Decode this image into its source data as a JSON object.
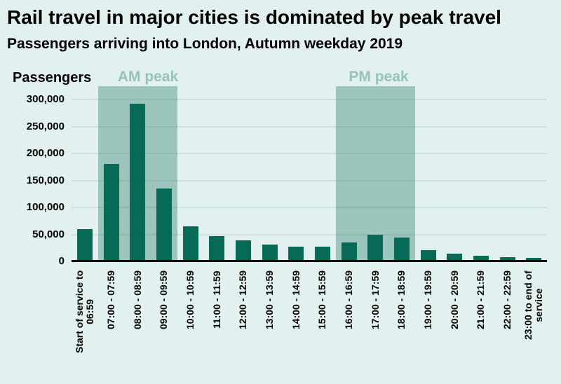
{
  "title": "Rail travel in major cities is dominated by peak travel",
  "subtitle": "Passengers arriving into London, Autumn weekday 2019",
  "chart_data": {
    "type": "bar",
    "title": "Rail travel in major cities is dominated by peak travel",
    "subtitle": "Passengers arriving into London, Autumn weekday 2019",
    "xlabel": "",
    "ylabel": "Passengers",
    "ylim": [
      0,
      300000
    ],
    "grid": true,
    "legend": "none",
    "yticks": [
      {
        "value": 0,
        "label": "0"
      },
      {
        "value": 50000,
        "label": "50,000"
      },
      {
        "value": 100000,
        "label": "100,000"
      },
      {
        "value": 150000,
        "label": "150,000"
      },
      {
        "value": 200000,
        "label": "200,000"
      },
      {
        "value": 250000,
        "label": "250,000"
      },
      {
        "value": 300000,
        "label": "300,000"
      }
    ],
    "categories": [
      "Start of service to 06:59",
      "07:00 - 07:59",
      "08:00 - 08:59",
      "09:00 - 09:59",
      "10:00 - 10:59",
      "11:00 - 11:59",
      "12:00 - 12:59",
      "13:00 - 13:59",
      "14:00 - 14:59",
      "15:00 - 15:59",
      "16:00 - 16:59",
      "17:00 - 17:59",
      "18:00 - 18:59",
      "19:00 - 19:59",
      "20:00 - 20:59",
      "21:00 - 21:59",
      "22:00 - 22:59",
      "23:00 to end of service"
    ],
    "category_lines": [
      [
        "Start of service to",
        "06:59"
      ],
      [
        "07:00 - 07:59"
      ],
      [
        "08:00 - 08:59"
      ],
      [
        "09:00 - 09:59"
      ],
      [
        "10:00 - 10:59"
      ],
      [
        "11:00 - 11:59"
      ],
      [
        "12:00 - 12:59"
      ],
      [
        "13:00 - 13:59"
      ],
      [
        "14:00 - 14:59"
      ],
      [
        "15:00 - 15:59"
      ],
      [
        "16:00 - 16:59"
      ],
      [
        "17:00 - 17:59"
      ],
      [
        "18:00 - 18:59"
      ],
      [
        "19:00 - 19:59"
      ],
      [
        "20:00 - 20:59"
      ],
      [
        "21:00 - 21:59"
      ],
      [
        "22:00 - 22:59"
      ],
      [
        "23:00 to end of",
        "service"
      ]
    ],
    "values": [
      60000,
      181000,
      292000,
      135000,
      65000,
      47000,
      39000,
      31000,
      27000,
      27000,
      35000,
      49000,
      44000,
      21000,
      14000,
      11000,
      8000,
      6000
    ],
    "bands": [
      {
        "label": "AM peak",
        "start_index": 1,
        "end_index": 3,
        "categories_covered": [
          "07:00 - 07:59",
          "08:00 - 08:59",
          "09:00 - 09:59"
        ]
      },
      {
        "label": "PM peak",
        "start_index": 10,
        "end_index": 12,
        "categories_covered": [
          "16:00 - 16:59",
          "17:00 - 17:59",
          "18:00 - 18:59"
        ]
      }
    ],
    "colors": {
      "background": "#e2f1ef",
      "bar": "#076a57",
      "band": "#9cc5bd",
      "band_label": "#97c2ba",
      "axis": "#000000",
      "text": "#000000"
    }
  }
}
